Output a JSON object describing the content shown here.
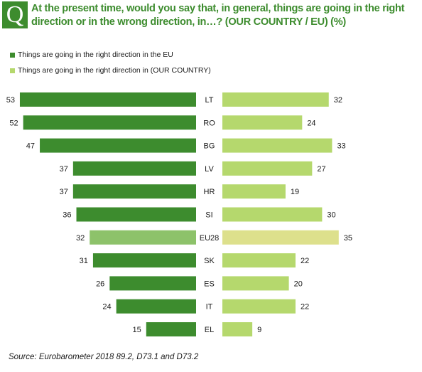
{
  "question": {
    "badge": "Q",
    "text": "At the present time, would you say that, in general, things are going in the right direction or in the wrong direction, in…? (OUR COUNTRY / EU) (%)"
  },
  "chart_data": {
    "type": "bar",
    "orientation": "horizontal-diverging",
    "title": "At the present time, would you say that, in general, things are going in the right direction or in the wrong direction, in…? (OUR COUNTRY / EU) (%)",
    "categories": [
      "LT",
      "RO",
      "BG",
      "LV",
      "HR",
      "SI",
      "EU28",
      "SK",
      "ES",
      "IT",
      "EL"
    ],
    "highlight_category": "EU28",
    "series": [
      {
        "name": "Things are going in the right direction in the EU",
        "side": "left",
        "color": "#3d8c2e",
        "highlight_color": "#8dc26a",
        "values": [
          53,
          52,
          47,
          37,
          37,
          36,
          32,
          31,
          26,
          24,
          15
        ]
      },
      {
        "name": "Things are going in the right direction in (OUR COUNTRY)",
        "side": "right",
        "color": "#b5d86d",
        "highlight_color": "#dde08c",
        "values": [
          32,
          24,
          33,
          27,
          19,
          30,
          35,
          22,
          20,
          22,
          9
        ]
      }
    ],
    "legend_position": "top-left",
    "grid": false
  },
  "source": "Source: Eurobarometer 2018 89.2, D73.1 and D73.2"
}
